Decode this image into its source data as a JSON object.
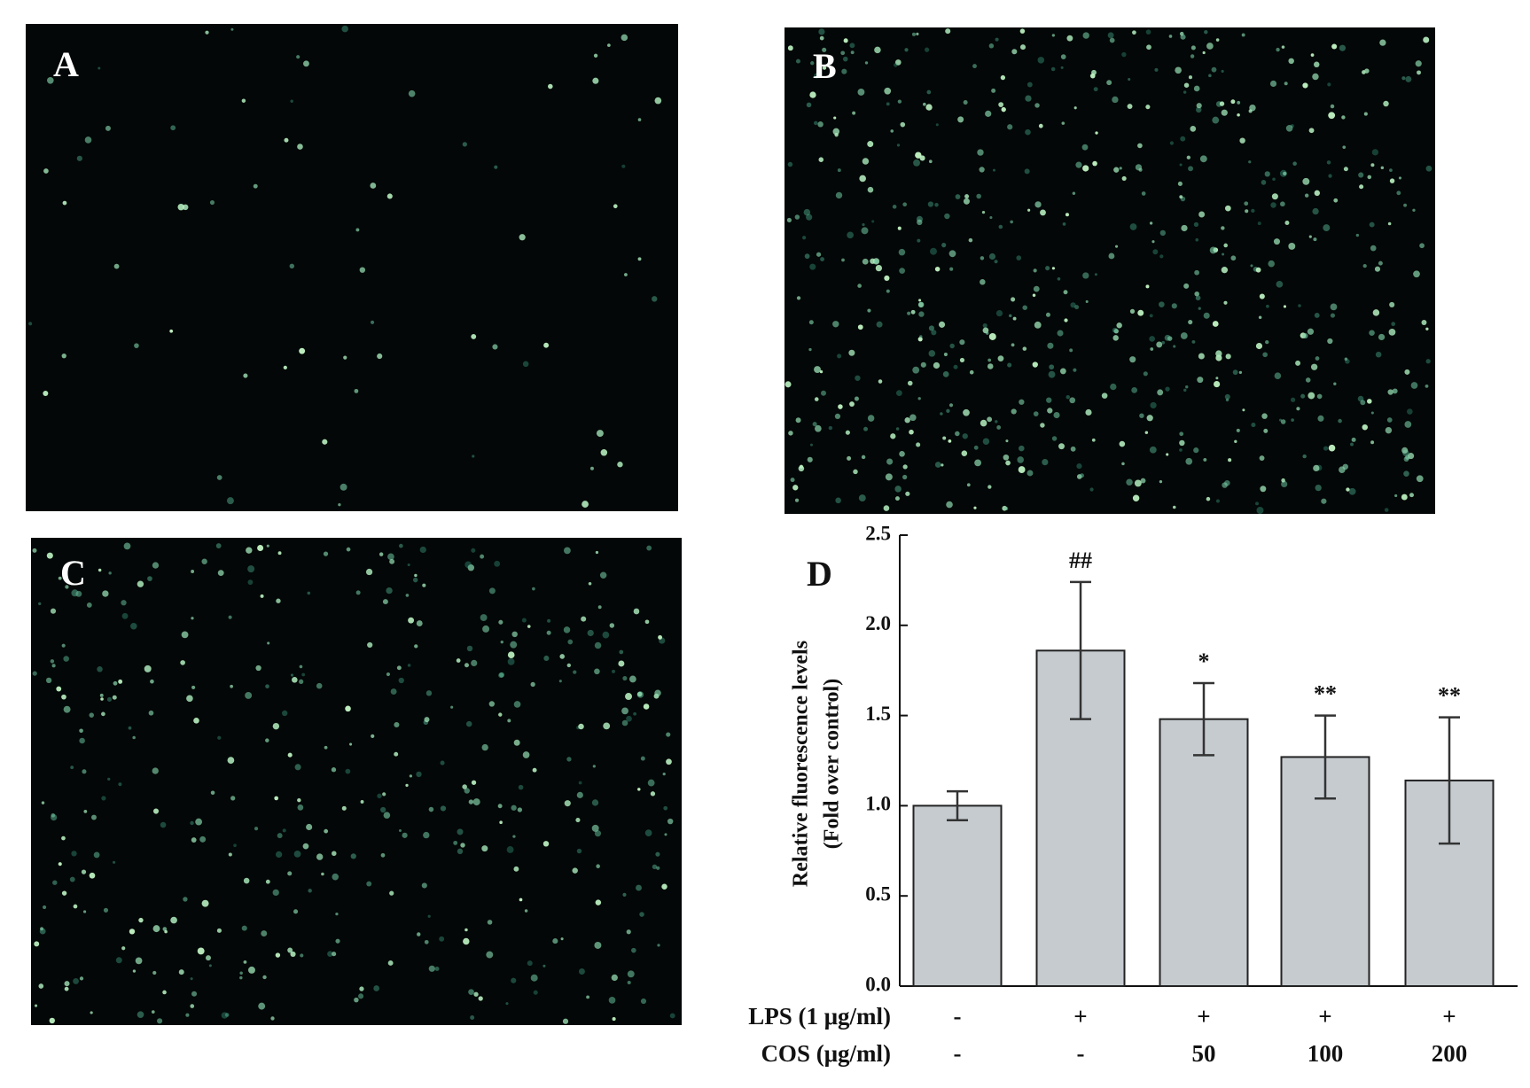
{
  "panels": [
    "A",
    "B",
    "C"
  ],
  "chart_data": {
    "type": "bar",
    "panel_label": "D",
    "ylabel": [
      "Relative fluorescence levels",
      "(Fold over control)"
    ],
    "ylim": [
      0,
      2.5
    ],
    "yticks": [
      {
        "value": 0,
        "label": "0.0"
      },
      {
        "value": 0.5,
        "label": "0.5"
      },
      {
        "value": 1,
        "label": "1.0"
      },
      {
        "value": 1.5,
        "label": "1.5"
      },
      {
        "value": 2,
        "label": "2.0"
      },
      {
        "value": 2.5,
        "label": "2.5"
      }
    ],
    "values": [
      1.0,
      1.86,
      1.48,
      1.27,
      1.14
    ],
    "errors": [
      0.08,
      0.38,
      0.2,
      0.23,
      0.35
    ],
    "annotations": [
      null,
      "##",
      "*",
      "**",
      "**"
    ],
    "color": "#c5cbcf",
    "category_rows": [
      {
        "name": "LPS (1 μg/ml)",
        "labels": [
          "-",
          "+",
          "+",
          "+",
          "+"
        ]
      },
      {
        "name": "COS (μg/ml)",
        "labels": [
          "-",
          "-",
          "50",
          "100",
          "200"
        ]
      }
    ]
  }
}
